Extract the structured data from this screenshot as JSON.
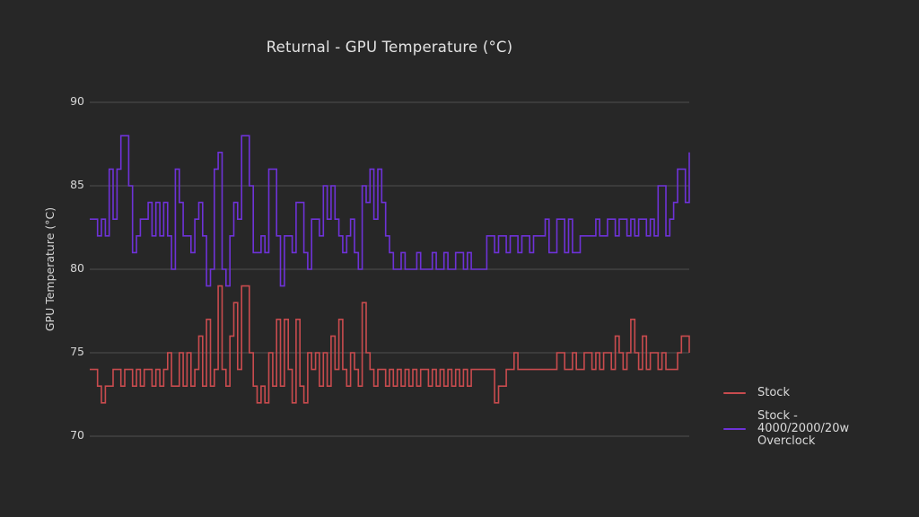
{
  "chart_data": {
    "type": "line",
    "step_style": "post",
    "title": "Returnal - GPU Temperature (°C)",
    "ylabel": "GPU Temperature (°C)",
    "xlabel": "",
    "yticks": [
      70,
      75,
      80,
      85,
      90
    ],
    "ylim": [
      68,
      92
    ],
    "xticks": [],
    "grid": "horizontal",
    "legend_position": "outside-right",
    "background_color": "#272727",
    "grid_color": "#474747",
    "text_color": "#d9d9d9",
    "series": [
      {
        "name": "Stock",
        "legend_lines": [
          "Stock"
        ],
        "color": "#c84b4e",
        "values": [
          74,
          74,
          73,
          72,
          73,
          73,
          74,
          74,
          73,
          74,
          74,
          73,
          74,
          73,
          74,
          74,
          73,
          74,
          73,
          74,
          75,
          73,
          73,
          75,
          73,
          75,
          73,
          74,
          76,
          73,
          77,
          73,
          74,
          79,
          74,
          73,
          76,
          78,
          74,
          79,
          79,
          75,
          73,
          72,
          73,
          72,
          75,
          73,
          77,
          73,
          77,
          74,
          72,
          77,
          73,
          72,
          75,
          74,
          75,
          73,
          75,
          73,
          76,
          74,
          77,
          74,
          73,
          75,
          74,
          73,
          78,
          75,
          74,
          73,
          74,
          74,
          73,
          74,
          73,
          74,
          73,
          74,
          73,
          74,
          73,
          74,
          74,
          73,
          74,
          73,
          74,
          73,
          74,
          73,
          74,
          73,
          74,
          73,
          74,
          74,
          74,
          74,
          74,
          74,
          72,
          73,
          73,
          74,
          74,
          75,
          74,
          74,
          74,
          74,
          74,
          74,
          74,
          74,
          74,
          74,
          75,
          75,
          74,
          74,
          75,
          74,
          74,
          75,
          75,
          74,
          75,
          74,
          75,
          75,
          74,
          76,
          75,
          74,
          75,
          77,
          75,
          74,
          76,
          74,
          75,
          75,
          74,
          75,
          74,
          74,
          74,
          75,
          76,
          76,
          75
        ]
      },
      {
        "name": "Stock - 4000/2000/20w Overclock",
        "legend_lines": [
          "Stock -",
          "4000/2000/20w",
          "Overclock"
        ],
        "color": "#6e32d7",
        "values": [
          83,
          83,
          82,
          83,
          82,
          86,
          83,
          86,
          88,
          88,
          85,
          81,
          82,
          83,
          83,
          84,
          82,
          84,
          82,
          84,
          82,
          80,
          86,
          84,
          82,
          82,
          81,
          83,
          84,
          82,
          79,
          80,
          86,
          87,
          80,
          79,
          82,
          84,
          83,
          88,
          88,
          85,
          81,
          81,
          82,
          81,
          86,
          86,
          82,
          79,
          82,
          82,
          81,
          84,
          84,
          81,
          80,
          83,
          83,
          82,
          85,
          83,
          85,
          83,
          82,
          81,
          82,
          83,
          81,
          80,
          85,
          84,
          86,
          83,
          86,
          84,
          82,
          81,
          80,
          80,
          81,
          80,
          80,
          80,
          81,
          80,
          80,
          80,
          81,
          80,
          80,
          81,
          80,
          80,
          81,
          81,
          80,
          81,
          80,
          80,
          80,
          80,
          82,
          82,
          81,
          82,
          82,
          81,
          82,
          82,
          81,
          82,
          82,
          81,
          82,
          82,
          82,
          83,
          81,
          81,
          83,
          83,
          81,
          83,
          81,
          81,
          82,
          82,
          82,
          82,
          83,
          82,
          82,
          83,
          83,
          82,
          83,
          83,
          82,
          83,
          82,
          83,
          83,
          82,
          83,
          82,
          85,
          85,
          82,
          83,
          84,
          86,
          86,
          84,
          87
        ]
      }
    ]
  }
}
